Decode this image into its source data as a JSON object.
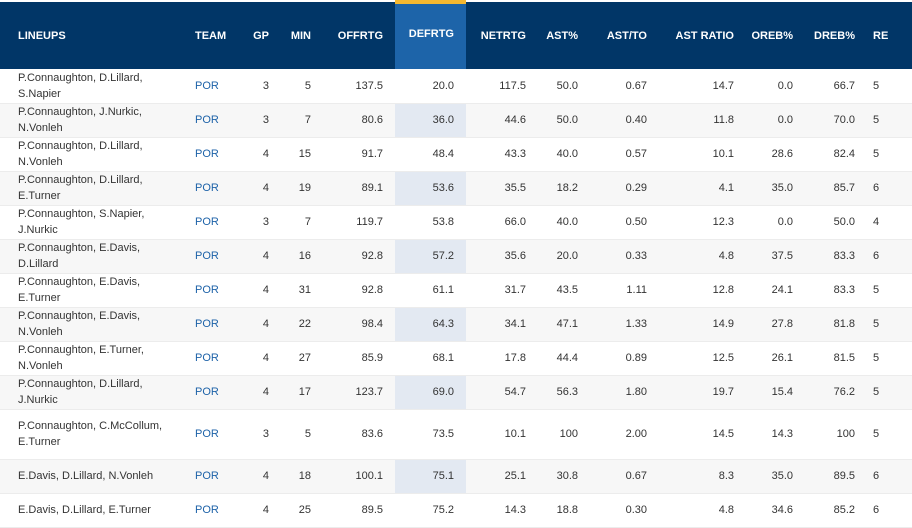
{
  "table": {
    "columns": [
      "LINEUPS",
      "TEAM",
      "GP",
      "MIN",
      "OFFRTG",
      "DEFRTG",
      "NETRTG",
      "AST%",
      "AST/TO",
      "AST RATIO",
      "OREB%",
      "DREB%",
      "RE"
    ],
    "sorted_column": "DEFRTG",
    "rows": [
      [
        "P.Connaughton, D.Lillard, S.Napier",
        "POR",
        "3",
        "5",
        "137.5",
        "20.0",
        "117.5",
        "50.0",
        "0.67",
        "14.7",
        "0.0",
        "66.7",
        "5"
      ],
      [
        "P.Connaughton, J.Nurkic, N.Vonleh",
        "POR",
        "3",
        "7",
        "80.6",
        "36.0",
        "44.6",
        "50.0",
        "0.40",
        "11.8",
        "0.0",
        "70.0",
        "5"
      ],
      [
        "P.Connaughton, D.Lillard, N.Vonleh",
        "POR",
        "4",
        "15",
        "91.7",
        "48.4",
        "43.3",
        "40.0",
        "0.57",
        "10.1",
        "28.6",
        "82.4",
        "5"
      ],
      [
        "P.Connaughton, D.Lillard, E.Turner",
        "POR",
        "4",
        "19",
        "89.1",
        "53.6",
        "35.5",
        "18.2",
        "0.29",
        "4.1",
        "35.0",
        "85.7",
        "6"
      ],
      [
        "P.Connaughton, S.Napier, J.Nurkic",
        "POR",
        "3",
        "7",
        "119.7",
        "53.8",
        "66.0",
        "40.0",
        "0.50",
        "12.3",
        "0.0",
        "50.0",
        "4"
      ],
      [
        "P.Connaughton, E.Davis, D.Lillard",
        "POR",
        "4",
        "16",
        "92.8",
        "57.2",
        "35.6",
        "20.0",
        "0.33",
        "4.8",
        "37.5",
        "83.3",
        "6"
      ],
      [
        "P.Connaughton, E.Davis, E.Turner",
        "POR",
        "4",
        "31",
        "92.8",
        "61.1",
        "31.7",
        "43.5",
        "1.11",
        "12.8",
        "24.1",
        "83.3",
        "5"
      ],
      [
        "P.Connaughton, E.Davis, N.Vonleh",
        "POR",
        "4",
        "22",
        "98.4",
        "64.3",
        "34.1",
        "47.1",
        "1.33",
        "14.9",
        "27.8",
        "81.8",
        "5"
      ],
      [
        "P.Connaughton, E.Turner, N.Vonleh",
        "POR",
        "4",
        "27",
        "85.9",
        "68.1",
        "17.8",
        "44.4",
        "0.89",
        "12.5",
        "26.1",
        "81.5",
        "5"
      ],
      [
        "P.Connaughton, D.Lillard, J.Nurkic",
        "POR",
        "4",
        "17",
        "123.7",
        "69.0",
        "54.7",
        "56.3",
        "1.80",
        "19.7",
        "15.4",
        "76.2",
        "5"
      ],
      [
        "P.Connaughton, C.McCollum, E.Turner",
        "POR",
        "3",
        "5",
        "83.6",
        "73.5",
        "10.1",
        "100",
        "2.00",
        "14.5",
        "14.3",
        "100",
        "5"
      ],
      [
        "E.Davis, D.Lillard, N.Vonleh",
        "POR",
        "4",
        "18",
        "100.1",
        "75.1",
        "25.1",
        "30.8",
        "0.67",
        "8.3",
        "35.0",
        "89.5",
        "6"
      ],
      [
        "E.Davis, D.Lillard, E.Turner",
        "POR",
        "4",
        "25",
        "89.5",
        "75.2",
        "14.3",
        "18.8",
        "0.30",
        "4.8",
        "34.6",
        "85.2",
        "6"
      ]
    ]
  }
}
